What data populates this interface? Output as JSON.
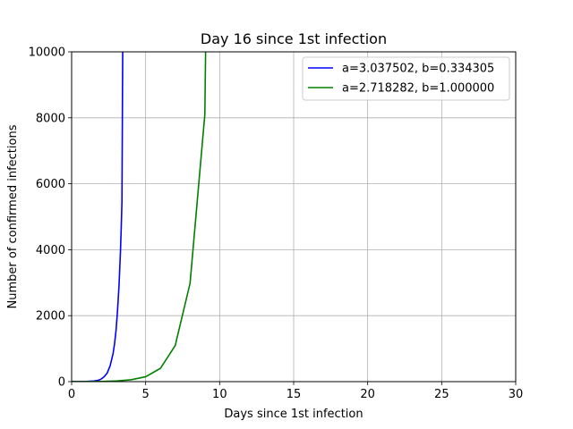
{
  "chart_data": {
    "type": "line",
    "title": "Day 16 since 1st infection",
    "xlabel": "Days since 1st infection",
    "ylabel": "Number of confirmed infections",
    "xlim": [
      0,
      30
    ],
    "ylim": [
      0,
      10000
    ],
    "x_ticks": [
      "0",
      "5",
      "10",
      "15",
      "20",
      "25",
      "30"
    ],
    "y_ticks": [
      "0",
      "2000",
      "4000",
      "6000",
      "8000",
      "10000"
    ],
    "grid": true,
    "legend_position": "upper-right",
    "series": [
      {
        "name": "a=3.037502, b=0.334305",
        "color": "#0000ff",
        "x": [
          0,
          0.5,
          1.0,
          1.5,
          1.8,
          2.0,
          2.2,
          2.4,
          2.6,
          2.8,
          2.9,
          3.0,
          3.1,
          3.2,
          3.3,
          3.35,
          3.4,
          3.45
        ],
        "y": [
          1,
          2,
          5,
          20,
          40,
          80,
          150,
          260,
          480,
          850,
          1150,
          1550,
          2150,
          2900,
          3950,
          4650,
          5450,
          10000
        ]
      },
      {
        "name": "a=2.718282, b=1.000000",
        "color": "#008000",
        "x": [
          0,
          1,
          2,
          3,
          4,
          5,
          6,
          7,
          8,
          9,
          9.05
        ],
        "y": [
          1,
          3,
          7,
          20,
          55,
          148,
          403,
          1097,
          2981,
          8103,
          10000
        ]
      }
    ]
  }
}
